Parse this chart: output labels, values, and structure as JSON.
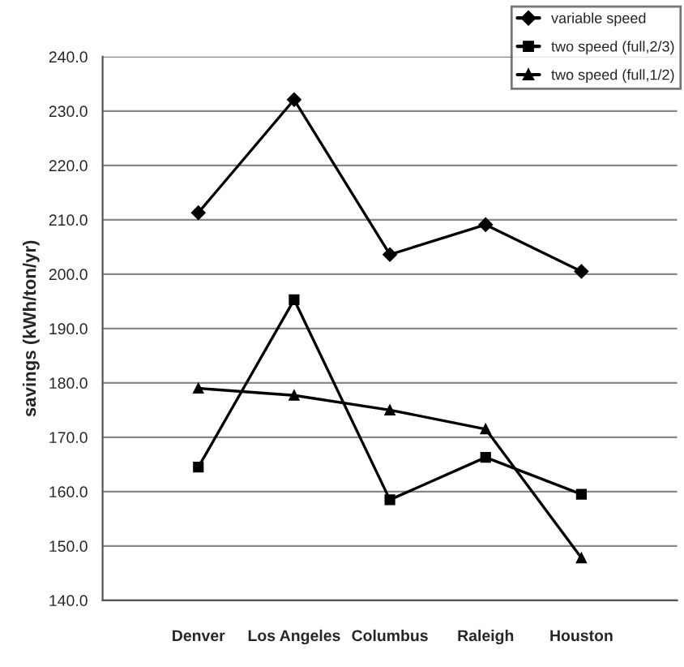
{
  "chart_data": {
    "type": "line",
    "ylabel": "savings (kWh/ton/yr)",
    "categories": [
      "Denver",
      "Los Angeles",
      "Columbus",
      "Raleigh",
      "Houston"
    ],
    "series": [
      {
        "name": "variable speed",
        "color": "#000000",
        "marker": "diamond",
        "values": [
          211.3,
          232.1,
          203.6,
          209.1,
          200.5
        ]
      },
      {
        "name": "two speed (full,2/3)",
        "color": "#000000",
        "marker": "square",
        "values": [
          164.5,
          195.3,
          158.5,
          166.3,
          159.5
        ]
      },
      {
        "name": "two speed (full,1/2)",
        "color": "#000000",
        "marker": "triangle",
        "values": [
          179.0,
          177.7,
          175.0,
          171.5,
          147.8
        ]
      }
    ],
    "ylim": [
      140,
      240
    ],
    "yticks": [
      {
        "value": 140,
        "label": "140.0"
      },
      {
        "value": 150,
        "label": "150.0"
      },
      {
        "value": 160,
        "label": "160.0"
      },
      {
        "value": 170,
        "label": "170.0"
      },
      {
        "value": 180,
        "label": "180.0"
      },
      {
        "value": 190,
        "label": "190.0"
      },
      {
        "value": 200,
        "label": "200.0"
      },
      {
        "value": 210,
        "label": "210.0"
      },
      {
        "value": 220,
        "label": "220.0"
      },
      {
        "value": 230,
        "label": "230.0"
      },
      {
        "value": 240,
        "label": "240.0"
      }
    ],
    "grid": "y",
    "legend": "top right",
    "line_style": "solid"
  }
}
